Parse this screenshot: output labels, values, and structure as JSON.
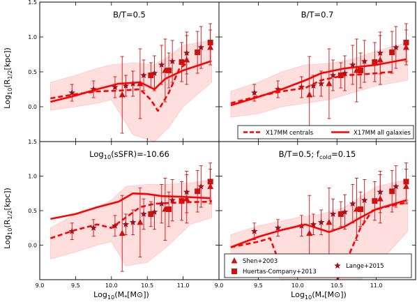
{
  "chart_data": {
    "type": "line",
    "layout": "2x2 grid of panels with shared axes",
    "xlabel": "Log10(M*[M⊙])",
    "ylabel": "Log10(R1/2[kpc])",
    "xlim": [
      9.0,
      11.5
    ],
    "ylim": [
      -0.5,
      1.5
    ],
    "x_ticks": [
      "9.0",
      "9.5",
      "10.0",
      "10.5",
      "11.0"
    ],
    "y_ticks": [
      "0.0",
      "0.5",
      "1.0",
      "1.5"
    ],
    "colors": {
      "model": "#ff0000",
      "obs": "#cc1111",
      "lange": "#991122",
      "band": "#ffdede",
      "band_edge": "#ffc6c6"
    },
    "observations": [
      {
        "name": "Shen+2003",
        "marker": "triangle",
        "x": [
          10.15,
          10.4,
          10.75,
          11.05,
          11.38
        ],
        "y": [
          0.17,
          0.33,
          0.52,
          0.67,
          0.85
        ],
        "err": [
          0.55,
          0.5,
          0.45,
          0.35,
          0.25
        ]
      },
      {
        "name": "Huertas-Company+2013",
        "marker": "square",
        "x": [
          10.55,
          10.8,
          10.98,
          11.2,
          11.38
        ],
        "y": [
          0.45,
          0.52,
          0.64,
          0.78,
          0.92
        ],
        "err": [
          0.18,
          0.25,
          0.28,
          0.3,
          0.27
        ]
      },
      {
        "name": "Lange+2015",
        "marker": "star",
        "x": [
          9.45,
          9.75,
          10.05,
          10.2,
          10.3,
          10.45,
          10.6,
          10.7,
          10.85,
          11.05,
          11.25
        ],
        "y": [
          0.2,
          0.25,
          0.28,
          0.3,
          0.33,
          0.45,
          0.48,
          0.6,
          0.65,
          0.77,
          0.85
        ],
        "err": [
          0.12,
          0.12,
          0.15,
          0.15,
          0.18,
          0.22,
          0.25,
          0.28,
          0.3,
          0.3,
          0.3
        ]
      }
    ],
    "panels": [
      {
        "title": "B/T=0.5",
        "series": [
          {
            "name": "X17MM centrals",
            "style": "dashed",
            "x": [
              9.15,
              9.5,
              9.8,
              10.1,
              10.4,
              10.55,
              10.65,
              10.8,
              10.95,
              11.05
            ],
            "y": [
              0.12,
              0.18,
              0.22,
              0.23,
              0.25,
              0.1,
              -0.06,
              0.2,
              0.55,
              0.62
            ]
          },
          {
            "name": "X17MM all galaxies",
            "style": "solid",
            "x": [
              9.15,
              9.5,
              9.8,
              10.1,
              10.4,
              10.6,
              10.75,
              11.0,
              11.38
            ],
            "y": [
              0.07,
              0.16,
              0.25,
              0.33,
              0.35,
              0.25,
              0.4,
              0.52,
              0.65
            ]
          }
        ],
        "band": {
          "x": [
            9.15,
            9.5,
            9.8,
            10.0,
            10.3,
            10.6,
            10.8,
            11.0,
            11.4
          ],
          "upper": [
            0.35,
            0.45,
            0.55,
            0.6,
            0.63,
            0.6,
            0.72,
            0.88,
            0.95
          ],
          "lower": [
            -0.05,
            0.0,
            0.05,
            0.1,
            -0.4,
            -0.5,
            -0.3,
            0.0,
            0.35
          ]
        }
      },
      {
        "title": "B/T=0.7",
        "series": [
          {
            "name": "X17MM centrals",
            "style": "dashed",
            "x": [
              9.15,
              9.5,
              9.8,
              10.1,
              10.3,
              10.6,
              10.9,
              11.2
            ],
            "y": [
              0.05,
              0.15,
              0.22,
              0.27,
              0.38,
              0.45,
              0.47,
              0.5
            ]
          },
          {
            "name": "X17MM all galaxies",
            "style": "solid",
            "x": [
              9.15,
              9.5,
              9.8,
              10.1,
              10.3,
              10.6,
              11.0,
              11.38
            ],
            "y": [
              0.02,
              0.14,
              0.25,
              0.38,
              0.48,
              0.55,
              0.6,
              0.68
            ]
          }
        ],
        "band": {
          "x": [
            9.15,
            9.5,
            9.8,
            10.1,
            10.4,
            10.7,
            11.0,
            11.4
          ],
          "upper": [
            0.22,
            0.35,
            0.5,
            0.6,
            0.62,
            0.68,
            0.8,
            0.92
          ],
          "lower": [
            -0.15,
            -0.1,
            0.0,
            0.05,
            0.1,
            0.2,
            0.3,
            0.38
          ]
        }
      },
      {
        "title": "Log10(sSFR)=-10.66",
        "series": [
          {
            "name": "X17MM centrals",
            "style": "dashed",
            "x": [
              9.15,
              9.5,
              9.8,
              10.0,
              10.2,
              10.4,
              10.6,
              11.0,
              11.4
            ],
            "y": [
              0.1,
              0.22,
              0.3,
              0.25,
              0.4,
              0.55,
              0.6,
              0.62,
              0.63
            ]
          },
          {
            "name": "X17MM all galaxies",
            "style": "solid",
            "x": [
              9.15,
              9.5,
              9.8,
              10.1,
              10.3,
              10.5,
              10.7,
              11.0,
              11.38
            ],
            "y": [
              0.38,
              0.45,
              0.55,
              0.63,
              0.75,
              0.74,
              0.71,
              0.7,
              0.68
            ]
          }
        ],
        "band": {
          "x": [
            9.15,
            9.5,
            9.8,
            10.0,
            10.2,
            10.5,
            10.8,
            11.1,
            11.4
          ],
          "upper": [
            0.25,
            0.45,
            0.55,
            0.65,
            0.85,
            0.88,
            0.88,
            0.9,
            0.95
          ],
          "lower": [
            -0.2,
            -0.1,
            0.0,
            0.05,
            -0.3,
            -0.25,
            0.0,
            0.3,
            0.4
          ]
        }
      },
      {
        "title": "B/T=0.5; fcold=0.15",
        "series": [
          {
            "name": "X17MM centrals",
            "style": "dashed",
            "x": [
              9.15,
              9.5,
              9.65,
              9.75,
              9.85
            ],
            "y": [
              -0.03,
              0.05,
              0.1,
              -0.2,
              -0.52
            ],
            "x2": [
              10.5,
              10.65,
              10.8,
              10.95,
              11.1,
              11.4
            ],
            "y2": [
              -0.52,
              -0.15,
              0.25,
              0.5,
              0.55,
              0.62
            ]
          },
          {
            "name": "X17MM all galaxies",
            "style": "solid",
            "x": [
              9.15,
              9.5,
              9.8,
              10.1,
              10.4,
              10.6,
              10.8,
              11.0,
              11.38
            ],
            "y": [
              -0.03,
              0.12,
              0.22,
              0.3,
              0.19,
              0.27,
              0.4,
              0.52,
              0.65
            ]
          }
        ],
        "band": {
          "x": [
            9.15,
            9.5,
            9.8,
            10.0,
            10.3,
            10.6,
            10.8,
            11.0,
            11.4
          ],
          "upper": [
            0.15,
            0.28,
            0.35,
            0.4,
            0.45,
            0.55,
            0.7,
            0.85,
            0.95
          ],
          "lower": [
            -0.2,
            -0.3,
            -0.5,
            -0.5,
            -0.5,
            -0.5,
            -0.5,
            -0.3,
            0.2
          ]
        }
      }
    ],
    "legends": {
      "panel2": [
        "X17MM centrals",
        "X17MM all galaxies"
      ],
      "panel4": [
        "Shen+2003",
        "Huertas-Company+2013",
        "Lange+2015"
      ]
    }
  }
}
